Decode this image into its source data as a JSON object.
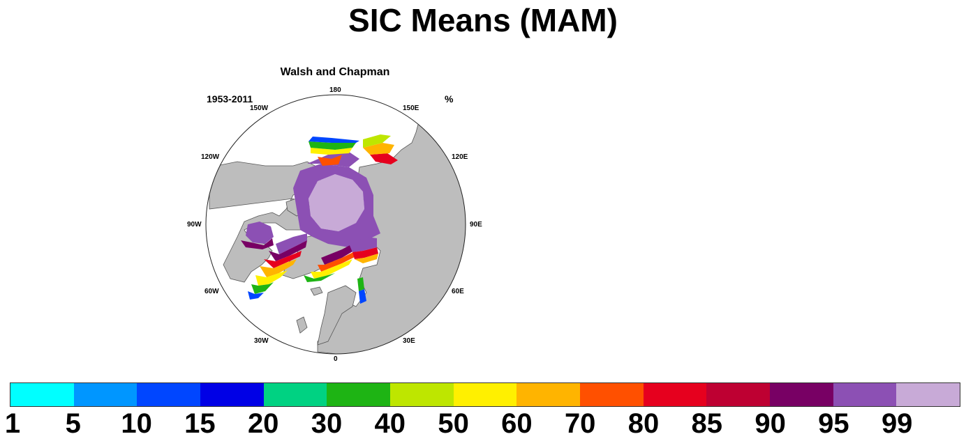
{
  "title": "SIC Means (MAM)",
  "panel": {
    "subtitle": "Walsh and Chapman",
    "period": "1953-2011",
    "unit": "%",
    "longitudes": [
      "180",
      "150E",
      "120E",
      "90E",
      "60E",
      "30E",
      "0",
      "30W",
      "60W",
      "90W",
      "120W",
      "150W"
    ]
  },
  "colorbar": {
    "colors": [
      "#00ffff",
      "#0096ff",
      "#0046ff",
      "#0000e6",
      "#00d282",
      "#1eb414",
      "#bee600",
      "#fff000",
      "#ffb400",
      "#ff5000",
      "#e6001e",
      "#be0032",
      "#780064",
      "#8c50b4",
      "#c8aad7"
    ],
    "labels": [
      "1",
      "5",
      "10",
      "15",
      "20",
      "30",
      "40",
      "50",
      "60",
      "70",
      "80",
      "85",
      "90",
      "95",
      "99"
    ]
  },
  "colors": {
    "land": "#bdbdbd",
    "ocean": "#ffffff",
    "coast": "#555555"
  }
}
